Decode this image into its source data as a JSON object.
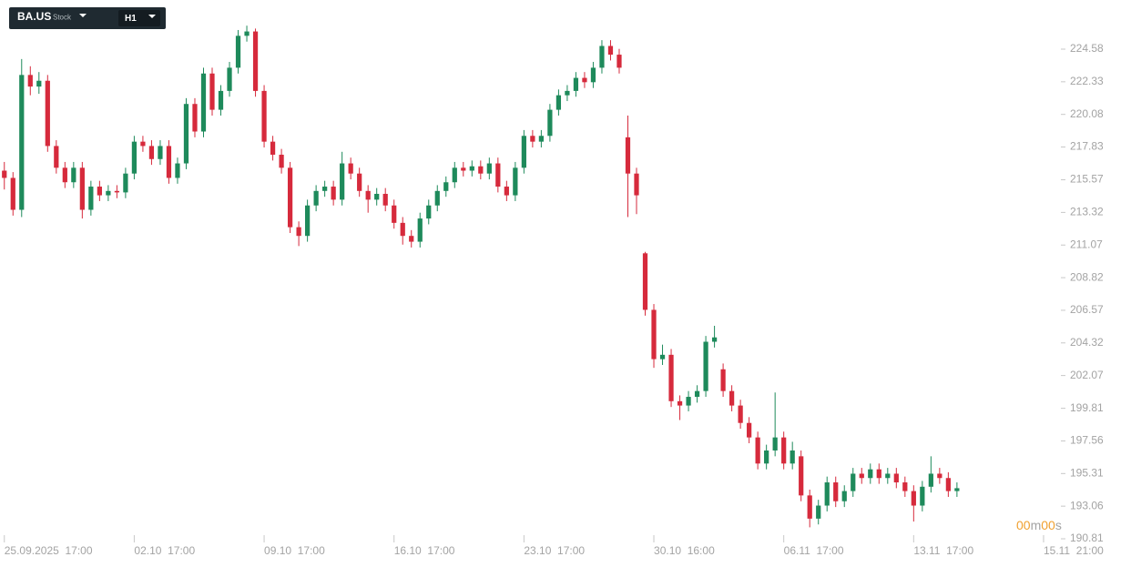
{
  "toolbar": {
    "symbol": "BA.US",
    "asset_type": "Stock",
    "interval": "H1"
  },
  "timer": {
    "minutes": "00",
    "minutes_unit": "m",
    "seconds": "00",
    "seconds_unit": "s"
  },
  "chart_data": {
    "type": "candlestick",
    "up_color": "#1e8a5b",
    "down_color": "#d62a3c",
    "xlim": [
      -0.5,
      122
    ],
    "ylim": [
      190.81,
      227.97
    ],
    "xticks": [
      {
        "value": 0,
        "label": "25.09.2025  17:00"
      },
      {
        "value": 15,
        "label": "02.10  17:00"
      },
      {
        "value": 30,
        "label": "09.10  17:00"
      },
      {
        "value": 45,
        "label": "16.10  17:00"
      },
      {
        "value": 60,
        "label": "23.10  17:00"
      },
      {
        "value": 75,
        "label": "30.10  16:00"
      },
      {
        "value": 90,
        "label": "06.11  17:00"
      },
      {
        "value": 105,
        "label": "13.11  17:00"
      },
      {
        "value": 120,
        "label": "15.11  21:00"
      }
    ],
    "yticks": [
      224.58,
      222.33,
      220.08,
      217.83,
      215.57,
      213.32,
      211.07,
      208.82,
      206.57,
      204.32,
      202.07,
      199.81,
      197.56,
      195.31,
      193.06,
      190.81
    ],
    "open": [
      216.2,
      215.7,
      213.5,
      222.8,
      222.0,
      222.4,
      217.9,
      216.4,
      215.4,
      216.4,
      213.5,
      215.1,
      214.5,
      214.8,
      214.7,
      216.0,
      218.2,
      217.9,
      217.0,
      217.9,
      215.7,
      216.7,
      220.8,
      218.9,
      222.9,
      220.4,
      221.7,
      223.3,
      225.5,
      225.8,
      221.7,
      218.2,
      217.3,
      216.4,
      212.3,
      211.7,
      213.8,
      214.8,
      215.1,
      214.2,
      216.7,
      216.0,
      214.8,
      214.2,
      214.6,
      213.8,
      212.6,
      211.7,
      211.3,
      212.9,
      213.8,
      214.8,
      215.4,
      216.4,
      216.2,
      216.5,
      216.0,
      216.7,
      215.1,
      214.5,
      216.4,
      218.6,
      218.2,
      218.6,
      220.4,
      221.4,
      221.7,
      222.6,
      222.3,
      223.3,
      224.8,
      224.2,
      218.5,
      216.0,
      210.5,
      206.6,
      203.2,
      203.5,
      200.3,
      200.0,
      200.6,
      201.0,
      204.4,
      202.5,
      201.0,
      200.0,
      198.8,
      197.8,
      196.0,
      196.9,
      197.8,
      196.0,
      196.5,
      193.8,
      192.2,
      193.1,
      194.7,
      193.4,
      194.1,
      195.3,
      195.0,
      195.6,
      195.0,
      195.3,
      194.7,
      194.1,
      193.1,
      194.4,
      195.3,
      195.0,
      194.1
    ],
    "high": [
      216.8,
      216.1,
      223.9,
      223.4,
      223.0,
      222.8,
      218.3,
      216.8,
      216.8,
      216.8,
      215.5,
      215.5,
      215.2,
      215.2,
      216.4,
      218.6,
      218.6,
      218.3,
      218.3,
      218.3,
      217.1,
      221.2,
      221.2,
      223.3,
      223.3,
      222.1,
      223.7,
      225.9,
      226.2,
      226.0,
      222.1,
      218.6,
      217.7,
      216.8,
      212.7,
      214.2,
      215.2,
      215.5,
      215.5,
      217.5,
      217.1,
      216.4,
      215.2,
      215.0,
      215.0,
      214.2,
      213.0,
      212.1,
      213.3,
      214.2,
      215.2,
      215.8,
      216.8,
      216.8,
      216.9,
      216.9,
      217.1,
      217.1,
      215.5,
      216.8,
      219.0,
      219.0,
      219.0,
      220.8,
      221.8,
      222.1,
      223.0,
      223.0,
      223.7,
      225.2,
      225.2,
      224.6,
      220.0,
      216.4,
      210.6,
      207.0,
      204.2,
      203.9,
      200.7,
      201.0,
      201.4,
      204.8,
      205.5,
      202.9,
      201.4,
      200.4,
      199.2,
      198.2,
      197.3,
      200.9,
      198.2,
      197.5,
      196.9,
      194.2,
      193.5,
      195.1,
      195.1,
      194.5,
      195.7,
      195.7,
      196.0,
      196.0,
      195.7,
      195.7,
      195.1,
      194.5,
      194.8,
      196.5,
      195.7,
      195.4,
      194.7
    ],
    "low": [
      214.9,
      213.1,
      213.0,
      221.4,
      221.5,
      217.5,
      216.0,
      215.0,
      215.0,
      212.9,
      213.1,
      214.1,
      214.1,
      214.3,
      214.3,
      215.6,
      217.5,
      216.6,
      216.6,
      215.3,
      215.3,
      216.3,
      218.5,
      218.5,
      220.0,
      220.0,
      221.3,
      222.9,
      225.1,
      221.3,
      217.8,
      216.9,
      216.0,
      211.9,
      211.0,
      211.3,
      213.4,
      214.4,
      213.8,
      213.8,
      215.6,
      214.4,
      213.3,
      213.8,
      213.4,
      212.2,
      211.1,
      210.9,
      210.9,
      212.5,
      213.4,
      214.4,
      215.0,
      215.8,
      215.8,
      215.6,
      215.6,
      214.7,
      214.1,
      214.1,
      216.0,
      217.8,
      217.8,
      218.2,
      220.0,
      221.0,
      221.3,
      221.9,
      221.9,
      222.9,
      223.8,
      222.9,
      213.0,
      213.2,
      206.2,
      202.6,
      202.8,
      199.9,
      199.0,
      199.6,
      200.2,
      200.6,
      204.0,
      200.6,
      199.6,
      198.4,
      197.4,
      195.6,
      195.6,
      196.5,
      195.6,
      195.6,
      193.4,
      191.6,
      191.8,
      192.7,
      193.0,
      193.0,
      193.7,
      194.6,
      194.6,
      194.6,
      194.6,
      194.3,
      193.7,
      192.0,
      192.7,
      194.0,
      194.6,
      193.7,
      193.7
    ],
    "close": [
      215.7,
      213.5,
      222.8,
      222.0,
      222.4,
      217.9,
      216.4,
      215.4,
      216.4,
      213.5,
      215.1,
      214.5,
      214.8,
      214.7,
      216.0,
      218.2,
      217.9,
      217.0,
      217.9,
      215.7,
      216.7,
      220.8,
      218.9,
      222.9,
      220.4,
      221.7,
      223.3,
      225.5,
      225.8,
      221.7,
      218.2,
      217.3,
      216.4,
      212.3,
      211.7,
      213.8,
      214.8,
      215.1,
      214.2,
      216.7,
      216.0,
      214.8,
      214.2,
      214.6,
      213.8,
      212.6,
      211.7,
      211.3,
      212.9,
      213.8,
      214.8,
      215.4,
      216.4,
      216.2,
      216.5,
      216.0,
      216.7,
      215.1,
      214.5,
      216.4,
      218.6,
      218.2,
      218.6,
      220.4,
      221.4,
      221.7,
      222.6,
      222.3,
      223.3,
      224.8,
      224.2,
      223.3,
      216.0,
      214.5,
      206.6,
      203.2,
      203.5,
      200.3,
      200.0,
      200.6,
      201.0,
      204.4,
      204.7,
      201.0,
      200.0,
      198.8,
      197.8,
      196.0,
      196.9,
      197.8,
      196.0,
      196.9,
      193.8,
      192.2,
      193.1,
      194.7,
      193.4,
      194.1,
      195.3,
      195.0,
      195.6,
      195.0,
      195.3,
      194.7,
      194.1,
      193.1,
      194.4,
      195.3,
      195.0,
      194.1,
      194.3
    ]
  }
}
